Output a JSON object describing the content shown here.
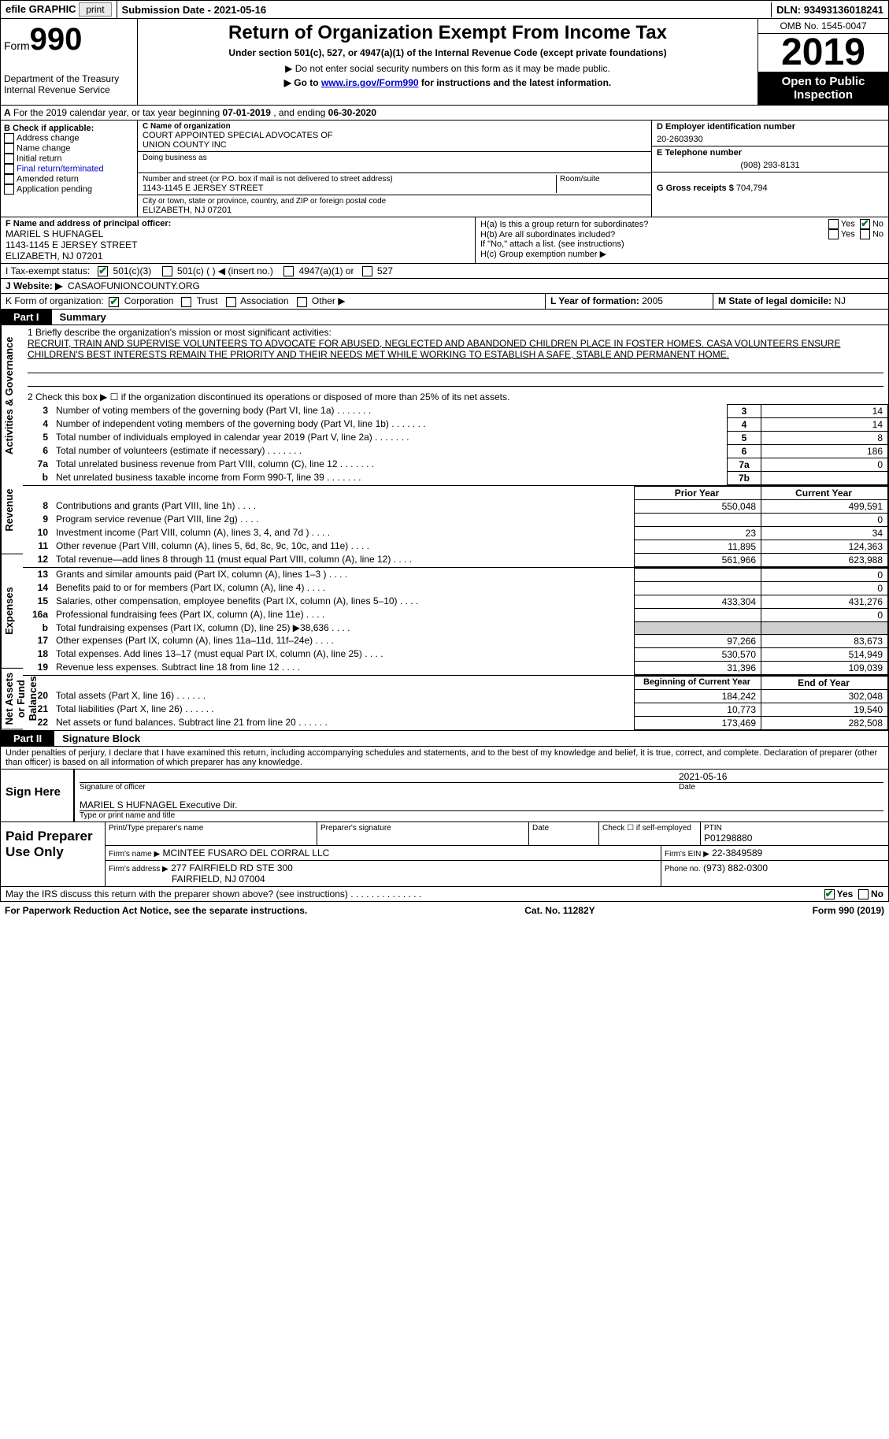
{
  "topbar": {
    "efile_label": "efile GRAPHIC",
    "print_btn": "print",
    "submission_label": "Submission Date - ",
    "submission_date": "2021-05-16",
    "dln_label": "DLN: ",
    "dln": "93493136018241"
  },
  "header": {
    "form_word": "Form",
    "form_num": "990",
    "dept1": "Department of the Treasury",
    "dept2": "Internal Revenue Service",
    "title": "Return of Organization Exempt From Income Tax",
    "subtitle": "Under section 501(c), 527, or 4947(a)(1) of the Internal Revenue Code (except private foundations)",
    "note1_pre": "▶ Do not enter social security numbers on this form as it may be made public.",
    "note2_pre": "▶ Go to ",
    "note2_link": "www.irs.gov/Form990",
    "note2_post": " for instructions and the latest information.",
    "omb": "OMB No. 1545-0047",
    "year": "2019",
    "inspection": "Open to Public Inspection"
  },
  "sectionA": {
    "label_pre": "A",
    "label": " For the 2019 calendar year, or tax year beginning ",
    "begin": "07-01-2019",
    "mid": " , and ending ",
    "end": "06-30-2020"
  },
  "boxB": {
    "header": "B Check if applicable:",
    "items": [
      "Address change",
      "Name change",
      "Initial return",
      "Final return/terminated",
      "Amended return",
      "Application pending"
    ]
  },
  "boxC": {
    "label": "C Name of organization",
    "name1": "COURT APPOINTED SPECIAL ADVOCATES OF",
    "name2": "UNION COUNTY INC",
    "dba_label": "Doing business as",
    "addr_label": "Number and street (or P.O. box if mail is not delivered to street address)",
    "room_label": "Room/suite",
    "addr": "1143-1145 E JERSEY STREET",
    "city_label": "City or town, state or province, country, and ZIP or foreign postal code",
    "city": "ELIZABETH, NJ  07201"
  },
  "boxD": {
    "label": "D Employer identification number",
    "value": "20-2603930"
  },
  "boxE": {
    "label": "E Telephone number",
    "value": "(908) 293-8131"
  },
  "boxG": {
    "label": "G Gross receipts $",
    "value": "704,794"
  },
  "boxF": {
    "label": "F Name and address of principal officer:",
    "name": "MARIEL S HUFNAGEL",
    "addr1": "1143-1145 E JERSEY STREET",
    "addr2": "ELIZABETH, NJ  07201"
  },
  "boxH": {
    "a_label": "H(a)  Is this a group return for subordinates?",
    "b_label": "H(b)  Are all subordinates included?",
    "b_note": "If \"No,\" attach a list. (see instructions)",
    "c_label": "H(c)  Group exemption number ▶",
    "yes": "Yes",
    "no": "No"
  },
  "boxI": {
    "label": "I   Tax-exempt status:",
    "opts": [
      "501(c)(3)",
      "501(c) (   ) ◀ (insert no.)",
      "4947(a)(1) or",
      "527"
    ]
  },
  "boxJ": {
    "label": "J   Website: ▶",
    "value": "CASAOFUNIONCOUNTY.ORG"
  },
  "boxK": {
    "label": "K Form of organization:",
    "opts": [
      "Corporation",
      "Trust",
      "Association",
      "Other ▶"
    ]
  },
  "boxL": {
    "label": "L Year of formation: ",
    "value": "2005"
  },
  "boxM": {
    "label": "M State of legal domicile: ",
    "value": "NJ"
  },
  "part1": {
    "tab": "Part I",
    "title": "Summary"
  },
  "summary": {
    "q1_label": "1   Briefly describe the organization's mission or most significant activities:",
    "q1_text": "RECRUIT, TRAIN AND SUPERVISE VOLUNTEERS TO ADVOCATE FOR ABUSED, NEGLECTED AND ABANDONED CHILDREN PLACE IN FOSTER HOMES. CASA VOLUNTEERS ENSURE CHILDREN'S BEST INTERESTS REMAIN THE PRIORITY AND THEIR NEEDS MET WHILE WORKING TO ESTABLISH A SAFE, STABLE AND PERMANENT HOME.",
    "q2": "2   Check this box ▶ ☐  if the organization discontinued its operations or disposed of more than 25% of its net assets.",
    "vlabel_ag": "Activities & Governance",
    "vlabel_rev": "Revenue",
    "vlabel_exp": "Expenses",
    "vlabel_na": "Net Assets or Fund Balances",
    "rows_ag": [
      {
        "n": "3",
        "t": "Number of voting members of the governing body (Part VI, line 1a)",
        "box": "3",
        "v": "14"
      },
      {
        "n": "4",
        "t": "Number of independent voting members of the governing body (Part VI, line 1b)",
        "box": "4",
        "v": "14"
      },
      {
        "n": "5",
        "t": "Total number of individuals employed in calendar year 2019 (Part V, line 2a)",
        "box": "5",
        "v": "8"
      },
      {
        "n": "6",
        "t": "Total number of volunteers (estimate if necessary)",
        "box": "6",
        "v": "186"
      },
      {
        "n": "7a",
        "t": "Total unrelated business revenue from Part VIII, column (C), line 12",
        "box": "7a",
        "v": "0"
      },
      {
        "n": "b",
        "t": "Net unrelated business taxable income from Form 990-T, line 39",
        "box": "7b",
        "v": ""
      }
    ],
    "hdr_prior": "Prior Year",
    "hdr_curr": "Current Year",
    "rows_rev": [
      {
        "n": "8",
        "t": "Contributions and grants (Part VIII, line 1h)",
        "p": "550,048",
        "c": "499,591"
      },
      {
        "n": "9",
        "t": "Program service revenue (Part VIII, line 2g)",
        "p": "",
        "c": "0"
      },
      {
        "n": "10",
        "t": "Investment income (Part VIII, column (A), lines 3, 4, and 7d )",
        "p": "23",
        "c": "34"
      },
      {
        "n": "11",
        "t": "Other revenue (Part VIII, column (A), lines 5, 6d, 8c, 9c, 10c, and 11e)",
        "p": "11,895",
        "c": "124,363"
      },
      {
        "n": "12",
        "t": "Total revenue—add lines 8 through 11 (must equal Part VIII, column (A), line 12)",
        "p": "561,966",
        "c": "623,988"
      }
    ],
    "rows_exp": [
      {
        "n": "13",
        "t": "Grants and similar amounts paid (Part IX, column (A), lines 1–3 )",
        "p": "",
        "c": "0"
      },
      {
        "n": "14",
        "t": "Benefits paid to or for members (Part IX, column (A), line 4)",
        "p": "",
        "c": "0"
      },
      {
        "n": "15",
        "t": "Salaries, other compensation, employee benefits (Part IX, column (A), lines 5–10)",
        "p": "433,304",
        "c": "431,276"
      },
      {
        "n": "16a",
        "t": "Professional fundraising fees (Part IX, column (A), line 11e)",
        "p": "",
        "c": "0"
      },
      {
        "n": "b",
        "t": "Total fundraising expenses (Part IX, column (D), line 25) ▶38,636",
        "p": "shade",
        "c": "shade"
      },
      {
        "n": "17",
        "t": "Other expenses (Part IX, column (A), lines 11a–11d, 11f–24e)",
        "p": "97,266",
        "c": "83,673"
      },
      {
        "n": "18",
        "t": "Total expenses. Add lines 13–17 (must equal Part IX, column (A), line 25)",
        "p": "530,570",
        "c": "514,949"
      },
      {
        "n": "19",
        "t": "Revenue less expenses. Subtract line 18 from line 12",
        "p": "31,396",
        "c": "109,039"
      }
    ],
    "hdr_beg": "Beginning of Current Year",
    "hdr_end": "End of Year",
    "rows_na": [
      {
        "n": "20",
        "t": "Total assets (Part X, line 16)",
        "p": "184,242",
        "c": "302,048"
      },
      {
        "n": "21",
        "t": "Total liabilities (Part X, line 26)",
        "p": "10,773",
        "c": "19,540"
      },
      {
        "n": "22",
        "t": "Net assets or fund balances. Subtract line 21 from line 20",
        "p": "173,469",
        "c": "282,508"
      }
    ]
  },
  "part2": {
    "tab": "Part II",
    "title": "Signature Block"
  },
  "sig": {
    "perjury": "Under penalties of perjury, I declare that I have examined this return, including accompanying schedules and statements, and to the best of my knowledge and belief, it is true, correct, and complete. Declaration of preparer (other than officer) is based on all information of which preparer has any knowledge.",
    "sign_here": "Sign Here",
    "sig_officer": "Signature of officer",
    "date_label": "Date",
    "date": "2021-05-16",
    "officer_name": "MARIEL S HUFNAGEL Executive Dir.",
    "type_name": "Type or print name and title",
    "paid": "Paid Preparer Use Only",
    "h1": "Print/Type preparer's name",
    "h2": "Preparer's signature",
    "h3": "Date",
    "check_se": "Check ☐ if self-employed",
    "ptin_label": "PTIN",
    "ptin": "P01298880",
    "firm_name_label": "Firm's name    ▶",
    "firm_name": "MCINTEE FUSARO DEL CORRAL LLC",
    "firm_ein_label": "Firm's EIN ▶",
    "firm_ein": "22-3849589",
    "firm_addr_label": "Firm's address ▶",
    "firm_addr1": "277 FAIRFIELD RD STE 300",
    "firm_addr2": "FAIRFIELD, NJ  07004",
    "phone_label": "Phone no.",
    "phone": "(973) 882-0300",
    "discuss": "May the IRS discuss this return with the preparer shown above? (see instructions)",
    "yes": "Yes",
    "no": "No"
  },
  "footer": {
    "left": "For Paperwork Reduction Act Notice, see the separate instructions.",
    "mid": "Cat. No. 11282Y",
    "right": "Form 990 (2019)"
  }
}
